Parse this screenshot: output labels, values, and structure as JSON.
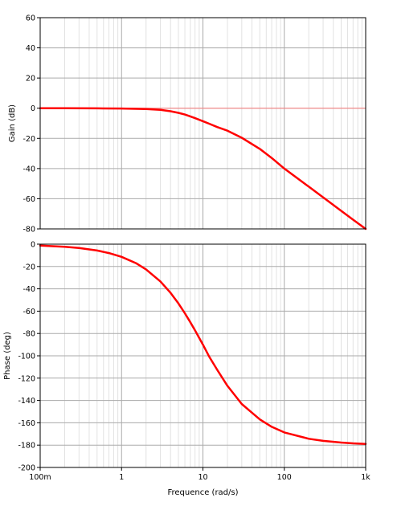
{
  "chart_data": [
    {
      "type": "line",
      "name": "gain",
      "ylabel": "Gain (dB)",
      "xlabel": "",
      "xscale": "log",
      "xlim": [
        0.1,
        1000
      ],
      "ylim": [
        -80,
        60
      ],
      "yticks": [
        60,
        40,
        20,
        0,
        -20,
        -40,
        -60,
        -80
      ],
      "grid": true,
      "reference_line": {
        "y": 0,
        "color": "#ff8080"
      },
      "series": [
        {
          "color": "#ff0000",
          "x": [
            0.1,
            0.2,
            0.5,
            1,
            2,
            3,
            4,
            5,
            6,
            7,
            8,
            10,
            12,
            15,
            20,
            30,
            50,
            70,
            100,
            200,
            300,
            500,
            700,
            1000
          ],
          "y": [
            0,
            0,
            -0.1,
            -0.2,
            -0.5,
            -1.1,
            -2,
            -3.1,
            -4.2,
            -5.4,
            -6.6,
            -8.6,
            -10.3,
            -12.5,
            -14.9,
            -19.6,
            -27,
            -33,
            -40,
            -52,
            -59.1,
            -68,
            -73.9,
            -80
          ]
        }
      ]
    },
    {
      "type": "line",
      "name": "phase",
      "ylabel": "Phase (deg)",
      "xlabel": "Frequence (rad/s)",
      "xscale": "log",
      "xlim": [
        0.1,
        1000
      ],
      "ylim": [
        -200,
        0
      ],
      "xticks": [
        "100m",
        "1",
        "10",
        "100",
        "1k"
      ],
      "yticks": [
        0,
        -20,
        -40,
        -60,
        -80,
        -100,
        -120,
        -140,
        -160,
        -180,
        -200
      ],
      "grid": true,
      "series": [
        {
          "color": "#ff0000",
          "x": [
            0.1,
            0.2,
            0.3,
            0.5,
            0.7,
            1,
            1.5,
            2,
            3,
            4,
            5,
            6,
            7,
            8,
            10,
            12,
            15,
            20,
            30,
            50,
            70,
            100,
            200,
            300,
            500,
            700,
            1000
          ],
          "y": [
            -1.2,
            -2.3,
            -3.4,
            -5.7,
            -8.0,
            -11.4,
            -17,
            -22.6,
            -33.4,
            -43.6,
            -53.1,
            -61.9,
            -69.9,
            -77.3,
            -90,
            -101,
            -112.6,
            -126.9,
            -143.2,
            -157,
            -163.6,
            -168.6,
            -174.3,
            -176.2,
            -177.7,
            -178.4,
            -178.9
          ]
        }
      ]
    }
  ]
}
